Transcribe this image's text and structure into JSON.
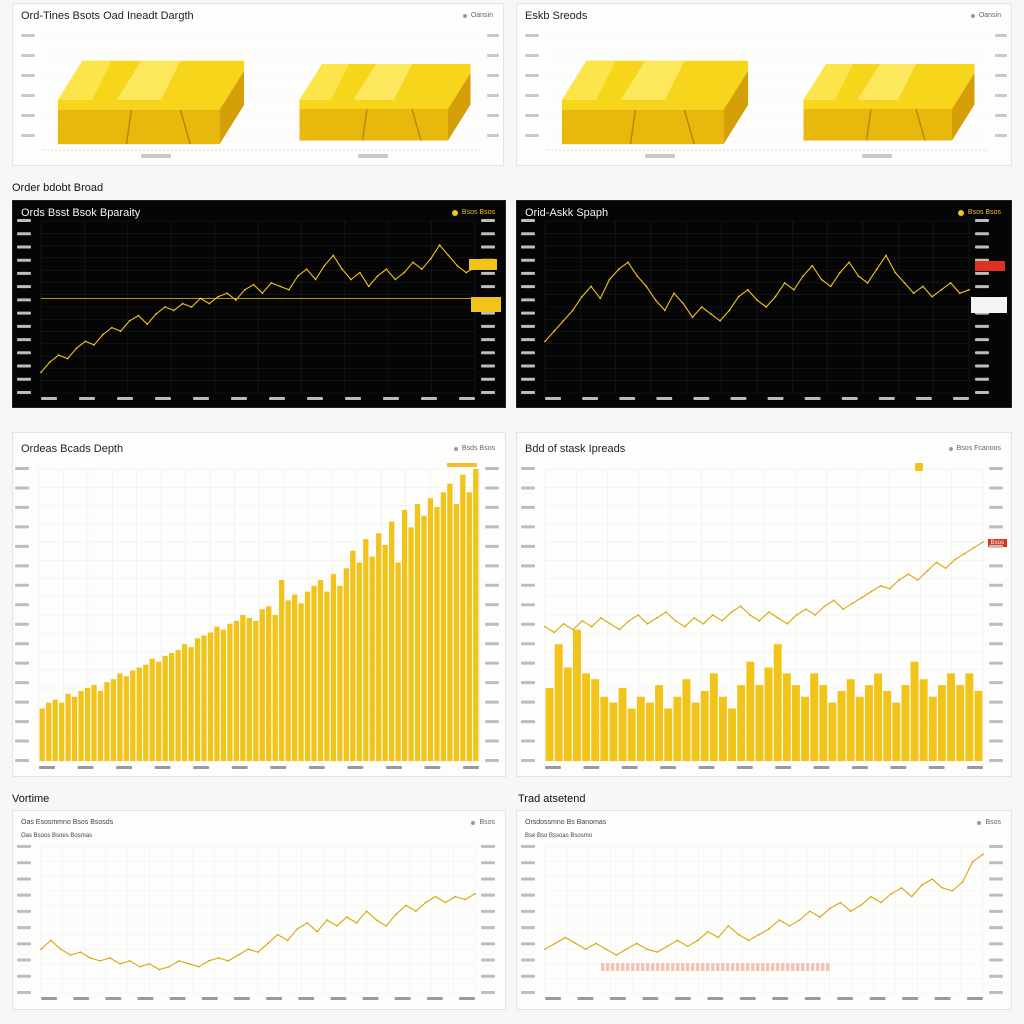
{
  "sections": {
    "order_book_spread": "Order bdobt Broad",
    "volume": "Vortime",
    "trade_extend": "Trad atsetend"
  },
  "panels": {
    "p1": {
      "title": "Ord-Tines Bsots Oad Ineadt Dargth",
      "hdr": "Oansin"
    },
    "p2": {
      "title": "Eskb Sreods",
      "hdr": "Oansin"
    },
    "p3": {
      "title": "Ords Bsst Bsok Bparaity",
      "hdr": "Bsos Bsos"
    },
    "p4": {
      "title": "Orid-Askk Spaph",
      "hdr": "Bsos Bsos"
    },
    "p5": {
      "title": "Ordeas Bcads Depth",
      "hdr": "Bsds Bsos"
    },
    "p6": {
      "title": "Bdd of stask Ipreads",
      "hdr": "Bsos Fcanoos",
      "tag": "Bsos"
    },
    "p7": {
      "title": "",
      "sub": "Oas Esosmmno Bsos Bsosds",
      "sub2": "Oas Bsoos Bsoes Bosmas",
      "hdr": "Bsos"
    },
    "p8": {
      "title": "",
      "sub": "Orsdossmno Bs Banomas",
      "sub2": "Bse Bso Bssoas Bsosmo",
      "hdr": "Bsos"
    }
  },
  "colors": {
    "gold": "#f2c318",
    "gold_dark": "#d9a70e",
    "red": "#e03020",
    "grid": "#ececea"
  },
  "chart_data": [
    {
      "id": "p1",
      "type": "other",
      "description_items": [
        "gold-bar-icon",
        "gold-bar-icon"
      ]
    },
    {
      "id": "p2",
      "type": "other",
      "description_items": [
        "gold-bar-icon",
        "gold-bar-icon"
      ]
    },
    {
      "id": "p3",
      "type": "line",
      "y_ref": 0.55,
      "grid": true,
      "y": [
        0.12,
        0.18,
        0.22,
        0.2,
        0.26,
        0.3,
        0.28,
        0.34,
        0.38,
        0.36,
        0.42,
        0.45,
        0.4,
        0.46,
        0.5,
        0.48,
        0.52,
        0.5,
        0.55,
        0.52,
        0.56,
        0.58,
        0.54,
        0.6,
        0.63,
        0.58,
        0.64,
        0.62,
        0.6,
        0.68,
        0.72,
        0.66,
        0.74,
        0.8,
        0.72,
        0.66,
        0.7,
        0.62,
        0.68,
        0.72,
        0.66,
        0.7,
        0.76,
        0.72,
        0.78,
        0.86,
        0.8,
        0.74,
        0.7,
        0.73
      ]
    },
    {
      "id": "p4",
      "type": "line",
      "grid": true,
      "y": [
        0.3,
        0.36,
        0.42,
        0.48,
        0.56,
        0.62,
        0.55,
        0.66,
        0.72,
        0.76,
        0.68,
        0.62,
        0.54,
        0.48,
        0.58,
        0.52,
        0.44,
        0.5,
        0.46,
        0.42,
        0.48,
        0.56,
        0.6,
        0.54,
        0.5,
        0.56,
        0.64,
        0.6,
        0.68,
        0.74,
        0.66,
        0.62,
        0.7,
        0.76,
        0.68,
        0.64,
        0.72,
        0.8,
        0.7,
        0.64,
        0.58,
        0.62,
        0.56,
        0.6,
        0.64,
        0.58,
        0.6
      ]
    },
    {
      "id": "p5",
      "type": "bar",
      "values": [
        0.18,
        0.2,
        0.21,
        0.2,
        0.23,
        0.22,
        0.24,
        0.25,
        0.26,
        0.24,
        0.27,
        0.28,
        0.3,
        0.29,
        0.31,
        0.32,
        0.33,
        0.35,
        0.34,
        0.36,
        0.37,
        0.38,
        0.4,
        0.39,
        0.42,
        0.43,
        0.44,
        0.46,
        0.45,
        0.47,
        0.48,
        0.5,
        0.49,
        0.48,
        0.52,
        0.53,
        0.5,
        0.62,
        0.55,
        0.57,
        0.54,
        0.58,
        0.6,
        0.62,
        0.58,
        0.64,
        0.6,
        0.66,
        0.72,
        0.68,
        0.76,
        0.7,
        0.78,
        0.74,
        0.82,
        0.68,
        0.86,
        0.8,
        0.88,
        0.84,
        0.9,
        0.87,
        0.92,
        0.95,
        0.88,
        0.98,
        0.92,
        1.0
      ]
    },
    {
      "id": "p6",
      "type": "line+bar",
      "y": [
        0.42,
        0.38,
        0.44,
        0.4,
        0.46,
        0.42,
        0.48,
        0.44,
        0.4,
        0.46,
        0.5,
        0.44,
        0.48,
        0.52,
        0.46,
        0.42,
        0.48,
        0.44,
        0.5,
        0.46,
        0.52,
        0.56,
        0.5,
        0.46,
        0.52,
        0.48,
        0.44,
        0.5,
        0.54,
        0.5,
        0.56,
        0.6,
        0.54,
        0.58,
        0.62,
        0.66,
        0.7,
        0.68,
        0.74,
        0.78,
        0.74,
        0.8,
        0.86,
        0.82,
        0.88,
        0.92,
        0.96,
        1.0
      ],
      "values": [
        0.25,
        0.4,
        0.32,
        0.45,
        0.3,
        0.28,
        0.22,
        0.2,
        0.25,
        0.18,
        0.22,
        0.2,
        0.26,
        0.18,
        0.22,
        0.28,
        0.2,
        0.24,
        0.3,
        0.22,
        0.18,
        0.26,
        0.34,
        0.26,
        0.32,
        0.4,
        0.3,
        0.26,
        0.22,
        0.3,
        0.26,
        0.2,
        0.24,
        0.28,
        0.22,
        0.26,
        0.3,
        0.24,
        0.2,
        0.26,
        0.34,
        0.28,
        0.22,
        0.26,
        0.3,
        0.26,
        0.3,
        0.24
      ]
    },
    {
      "id": "p7",
      "type": "line",
      "y": [
        0.3,
        0.36,
        0.3,
        0.26,
        0.28,
        0.24,
        0.22,
        0.24,
        0.2,
        0.22,
        0.18,
        0.2,
        0.16,
        0.18,
        0.22,
        0.2,
        0.18,
        0.22,
        0.24,
        0.22,
        0.26,
        0.3,
        0.28,
        0.34,
        0.4,
        0.36,
        0.44,
        0.48,
        0.42,
        0.5,
        0.46,
        0.52,
        0.48,
        0.56,
        0.5,
        0.46,
        0.54,
        0.6,
        0.56,
        0.62,
        0.66,
        0.62,
        0.66,
        0.64,
        0.68
      ]
    },
    {
      "id": "p8",
      "type": "line",
      "y": [
        0.3,
        0.34,
        0.38,
        0.34,
        0.3,
        0.34,
        0.3,
        0.26,
        0.3,
        0.34,
        0.3,
        0.28,
        0.32,
        0.36,
        0.32,
        0.36,
        0.42,
        0.38,
        0.46,
        0.4,
        0.36,
        0.4,
        0.44,
        0.5,
        0.46,
        0.5,
        0.56,
        0.52,
        0.58,
        0.62,
        0.56,
        0.6,
        0.66,
        0.62,
        0.68,
        0.72,
        0.66,
        0.74,
        0.78,
        0.72,
        0.7,
        0.76,
        0.9,
        0.95
      ]
    }
  ]
}
